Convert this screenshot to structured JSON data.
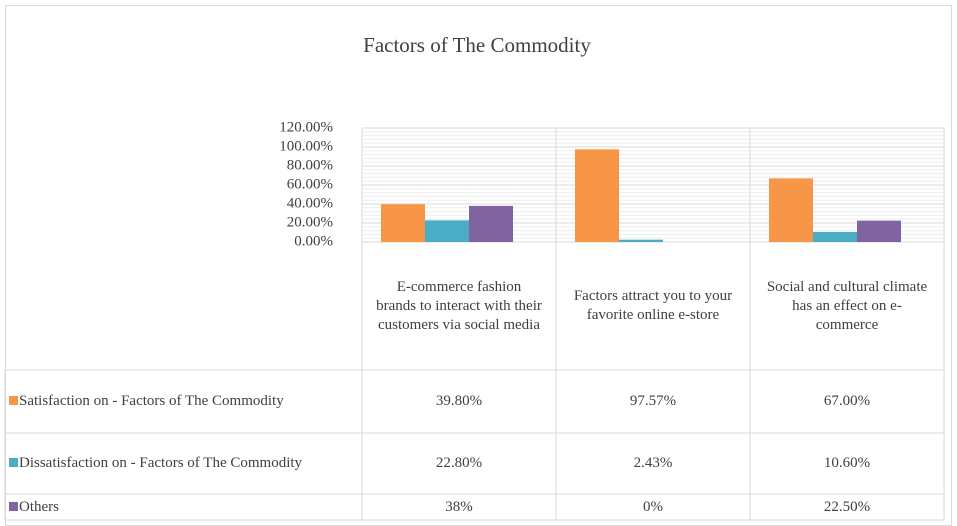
{
  "chart_data": {
    "type": "bar",
    "title": "Factors of The Commodity",
    "categories": [
      "E-commerce fashion brands to interact with their customers via social media",
      "Factors attract you to your favorite online e-store",
      "Social and cultural climate has an effect on e-commerce"
    ],
    "series": [
      {
        "name": "Satisfaction on - Factors of The Commodity",
        "color": "#f79646",
        "values": [
          39.8,
          97.57,
          67.0
        ],
        "value_labels": [
          "39.80%",
          "97.57%",
          "67.00%"
        ]
      },
      {
        "name": "Dissatisfaction on - Factors of The Commodity",
        "color": "#4bacc6",
        "values": [
          22.8,
          2.43,
          10.6
        ],
        "value_labels": [
          "22.80%",
          "2.43%",
          "10.60%"
        ]
      },
      {
        "name": "Others",
        "color": "#8064a2",
        "values": [
          38,
          0,
          22.5
        ],
        "value_labels": [
          "38%",
          "0%",
          "22.50%"
        ]
      }
    ],
    "ylim": [
      0,
      120
    ],
    "yticks": [
      {
        "value": 0,
        "label": "0.00%"
      },
      {
        "value": 20,
        "label": "20.00%"
      },
      {
        "value": 40,
        "label": "40.00%"
      },
      {
        "value": 60,
        "label": "60.00%"
      },
      {
        "value": 80,
        "label": "80.00%"
      },
      {
        "value": 100,
        "label": "100.00%"
      },
      {
        "value": 120,
        "label": "120.00%"
      }
    ],
    "grid": true
  }
}
